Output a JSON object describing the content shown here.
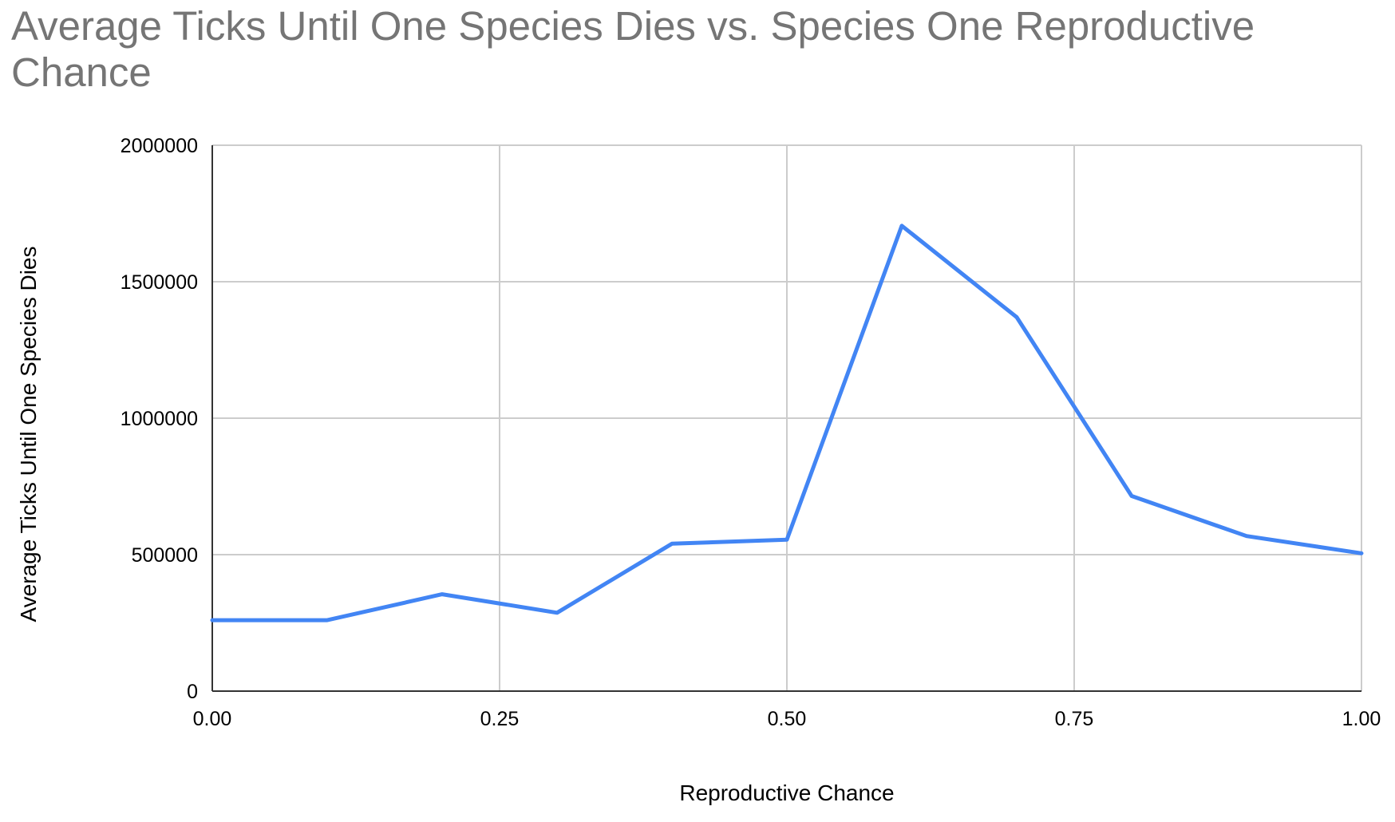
{
  "chart_data": {
    "type": "line",
    "title": "Average Ticks Until One Species Dies vs. Species One Reproductive Chance",
    "xlabel": "Reproductive Chance",
    "ylabel": "Average Ticks Until One Species Dies",
    "xlim": [
      0,
      1
    ],
    "ylim": [
      0,
      2000000
    ],
    "x_ticks": [
      "0.00",
      "0.25",
      "0.50",
      "0.75",
      "1.00"
    ],
    "y_ticks": [
      "0",
      "500000",
      "1000000",
      "1500000",
      "2000000"
    ],
    "grid": true,
    "legend": "none",
    "line_color": "#4285F4",
    "series": [
      {
        "x": [
          0.0,
          0.1,
          0.2,
          0.3,
          0.4,
          0.5,
          0.6,
          0.7,
          0.8,
          0.9,
          1.0
        ],
        "values": [
          260000,
          260000,
          355000,
          287000,
          540000,
          555000,
          1705000,
          1370000,
          715000,
          568000,
          505000
        ]
      }
    ]
  }
}
